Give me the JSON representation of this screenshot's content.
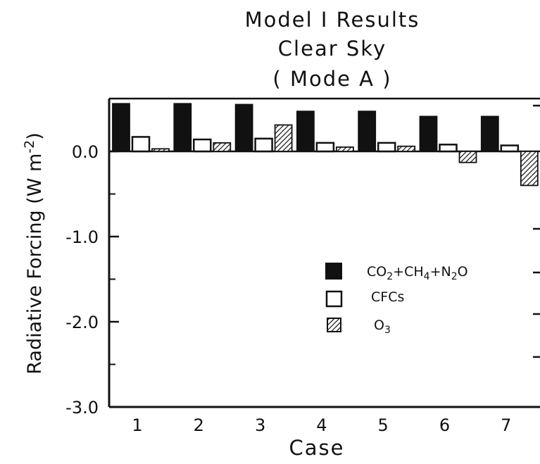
{
  "chart_data": {
    "type": "bar",
    "title_lines": [
      "Model I Results",
      "Clear Sky",
      "( Mode A )"
    ],
    "xlabel": "Case",
    "ylabel": "Radiative Forcing (W m",
    "ylabel_sup": "-2",
    "ylabel_close": ")",
    "categories": [
      "1",
      "2",
      "3",
      "4",
      "5",
      "6",
      "7"
    ],
    "y_ticks": [
      "0.0",
      "-1.0",
      "-2.0",
      "-3.0"
    ],
    "y_tick_values": [
      0,
      -1,
      -2,
      -3
    ],
    "ylim": [
      -3.0,
      0.6
    ],
    "series": [
      {
        "name": "CO2+CH4+N2O",
        "fill": "solid",
        "values": [
          0.56,
          0.56,
          0.55,
          0.47,
          0.47,
          0.41,
          0.41
        ]
      },
      {
        "name": "CFCs",
        "fill": "open",
        "values": [
          0.17,
          0.14,
          0.15,
          0.1,
          0.1,
          0.08,
          0.07
        ]
      },
      {
        "name": "O3",
        "fill": "hatched",
        "values": [
          0.03,
          0.1,
          0.31,
          0.05,
          0.06,
          -0.13,
          -0.4
        ]
      }
    ],
    "legend": {
      "placement": "center-right",
      "entries": [
        {
          "label_parts": [
            [
              "CO",
              ""
            ],
            [
              "2",
              "sub"
            ],
            [
              "+CH",
              ""
            ],
            [
              "4",
              "sub"
            ],
            [
              "+N",
              ""
            ],
            [
              "2",
              "sub"
            ],
            [
              "O",
              ""
            ]
          ]
        },
        {
          "label_parts": [
            [
              "CFCs",
              ""
            ]
          ]
        },
        {
          "label_parts": [
            [
              "O",
              ""
            ],
            [
              "3",
              "sub"
            ]
          ]
        }
      ]
    },
    "colors": {
      "ink": "#111111",
      "background": "#ffffff"
    }
  }
}
